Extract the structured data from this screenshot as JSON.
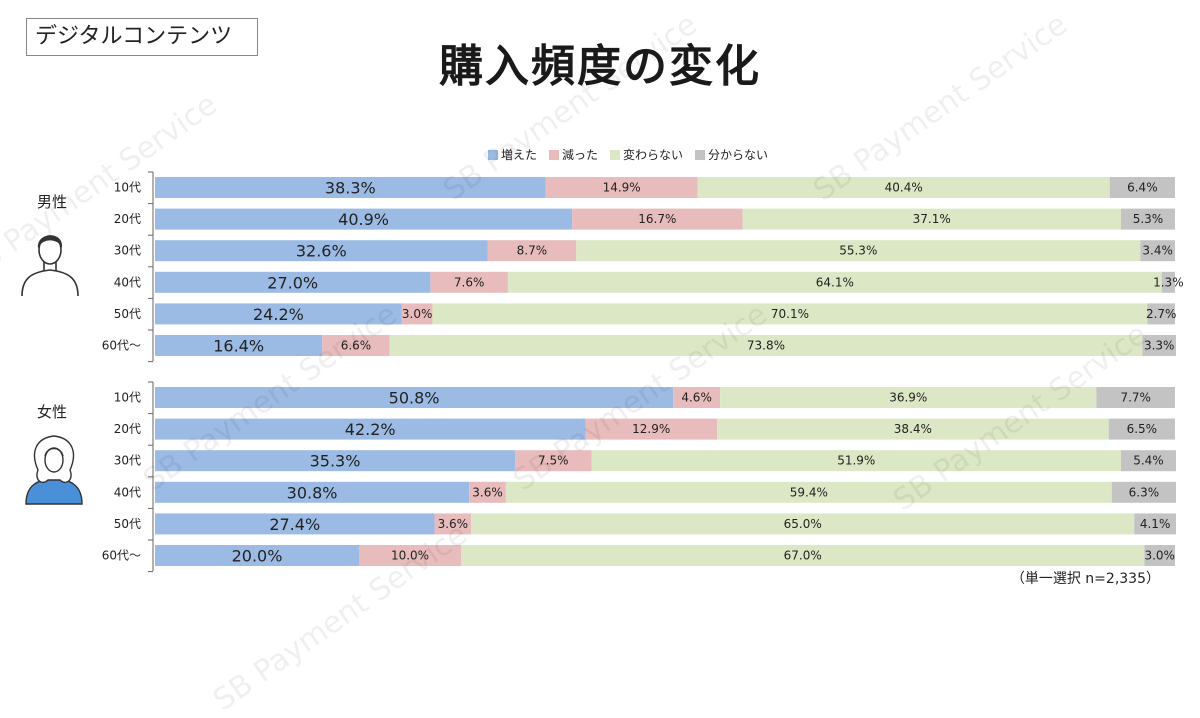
{
  "header": {
    "tag": "デジタルコンテンツ",
    "title": "購入頻度の変化"
  },
  "note": "（単一選択 n=2,335）",
  "watermark": "SB Payment Service",
  "colors": {
    "inc": "#9bbbe5",
    "dec": "#e8bcbc",
    "same": "#dce8c5",
    "unk": "#c3c3c3"
  },
  "chart_data": {
    "type": "bar",
    "orientation": "horizontal-stacked-100",
    "legend": [
      "増えた",
      "減った",
      "変わらない",
      "分からない"
    ],
    "legend_position": "top",
    "groups": [
      {
        "name": "男性",
        "icon": "male-person-icon",
        "categories": [
          "10代",
          "20代",
          "30代",
          "40代",
          "50代",
          "60代～"
        ],
        "series": [
          {
            "name": "増えた",
            "values": [
              38.3,
              40.9,
              32.6,
              27.0,
              24.2,
              16.4
            ]
          },
          {
            "name": "減った",
            "values": [
              14.9,
              16.7,
              8.7,
              7.6,
              3.0,
              6.6
            ]
          },
          {
            "name": "変わらない",
            "values": [
              40.4,
              37.1,
              55.3,
              64.1,
              70.1,
              73.8
            ]
          },
          {
            "name": "分からない",
            "values": [
              6.4,
              5.3,
              3.4,
              1.3,
              2.7,
              3.3
            ]
          }
        ]
      },
      {
        "name": "女性",
        "icon": "female-person-icon",
        "categories": [
          "10代",
          "20代",
          "30代",
          "40代",
          "50代",
          "60代～"
        ],
        "series": [
          {
            "name": "増えた",
            "values": [
              50.8,
              42.2,
              35.3,
              30.8,
              27.4,
              20.0
            ]
          },
          {
            "name": "減った",
            "values": [
              4.6,
              12.9,
              7.5,
              3.6,
              3.6,
              10.0
            ]
          },
          {
            "name": "変わらない",
            "values": [
              36.9,
              38.4,
              51.9,
              59.4,
              65.0,
              67.0
            ]
          },
          {
            "name": "分からない",
            "values": [
              7.7,
              6.5,
              5.4,
              6.3,
              4.1,
              3.0
            ]
          }
        ]
      }
    ]
  }
}
